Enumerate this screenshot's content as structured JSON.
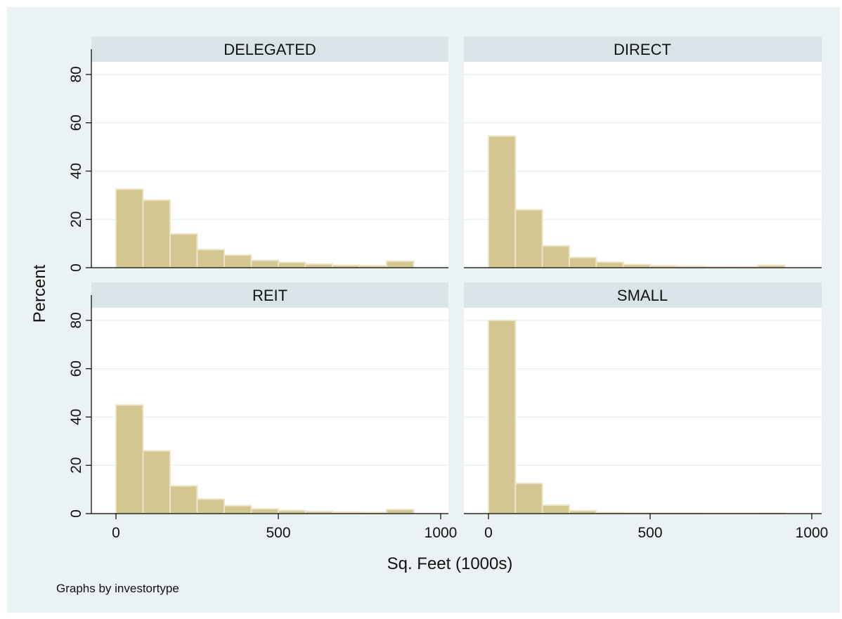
{
  "chart_data": {
    "type": "bar",
    "layout": "2x2 small multiples",
    "xlabel": "Sq. Feet (1000s)",
    "ylabel": "Percent",
    "note": "Graphs by investortype",
    "xlim": [
      0,
      1000
    ],
    "ylim": [
      0,
      80
    ],
    "x_ticks": [
      "0",
      "500",
      "1000"
    ],
    "y_ticks": [
      "0",
      "20",
      "40",
      "60",
      "80"
    ],
    "bin_edges": [
      0,
      83.3,
      166.7,
      250,
      333.3,
      416.7,
      500,
      583.3,
      666.7,
      750,
      833.3,
      916.7
    ],
    "grid": true,
    "colors": {
      "bar_fill": "#d4c690",
      "bar_edge": "#ece4c6",
      "outer_background": "#eaf2f3",
      "plot_background": "#ffffff",
      "strip_background": "#d9e4e8",
      "gridline": "#eaf2f3",
      "axis": "#000000"
    },
    "panels": [
      {
        "title": "DELEGATED",
        "values": [
          32.5,
          28,
          14,
          7.5,
          5.2,
          3,
          2.2,
          1.5,
          1,
          0.8,
          2.7
        ]
      },
      {
        "title": "DIRECT",
        "values": [
          54.5,
          24,
          9,
          4.2,
          2.3,
          1.3,
          0.8,
          0.6,
          0.4,
          0.4,
          1
        ]
      },
      {
        "title": "REIT",
        "values": [
          45,
          26,
          11.5,
          6,
          3.3,
          2,
          1.3,
          0.9,
          0.6,
          0.5,
          1.7
        ]
      },
      {
        "title": "SMALL",
        "values": [
          80,
          12.5,
          3.5,
          1.2,
          0.4,
          0.3,
          0.2,
          0.2,
          0.15,
          0.15,
          0.2
        ]
      }
    ]
  }
}
